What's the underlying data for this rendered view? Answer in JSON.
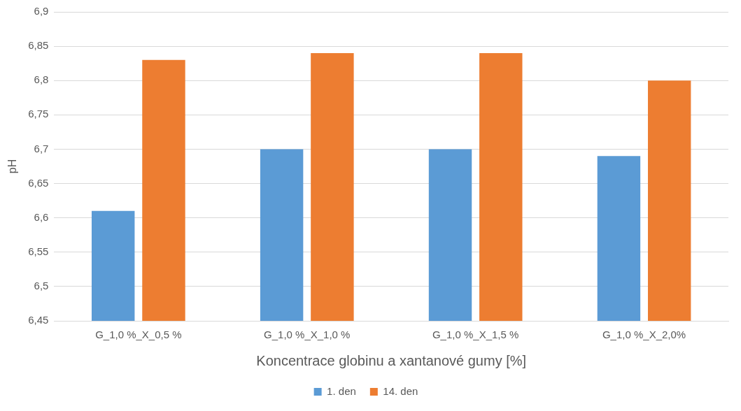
{
  "chart_data": {
    "type": "bar",
    "xlabel": "Koncentrace globinu a xantanové gumy [%]",
    "ylabel": "pH",
    "categories": [
      "G_1,0 %_X_0,5 %",
      "G_1,0 %_X_1,0 %",
      "G_1,0 %_X_1,5 %",
      "G_1,0 %_X_2,0%"
    ],
    "series": [
      {
        "name": "1. den",
        "color": "#5b9bd5",
        "values": [
          6.61,
          6.7,
          6.7,
          6.69
        ]
      },
      {
        "name": "14. den",
        "color": "#ed7d31",
        "values": [
          6.83,
          6.84,
          6.84,
          6.8
        ]
      }
    ],
    "ylim": [
      6.45,
      6.9
    ],
    "yticks": [
      {
        "value": 6.45,
        "label": "6,45"
      },
      {
        "value": 6.5,
        "label": "6,5"
      },
      {
        "value": 6.55,
        "label": "6,55"
      },
      {
        "value": 6.6,
        "label": "6,6"
      },
      {
        "value": 6.65,
        "label": "6,65"
      },
      {
        "value": 6.7,
        "label": "6,7"
      },
      {
        "value": 6.75,
        "label": "6,75"
      },
      {
        "value": 6.8,
        "label": "6,8"
      },
      {
        "value": 6.85,
        "label": "6,85"
      },
      {
        "value": 6.9,
        "label": "6,9"
      }
    ],
    "grid": "y",
    "legend": "bottom"
  }
}
